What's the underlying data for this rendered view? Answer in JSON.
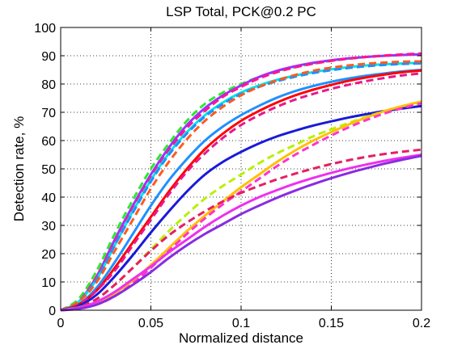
{
  "chart_data": {
    "type": "line",
    "title": "LSP Total, PCK@0.2 PC",
    "xlabel": "Normalized distance",
    "ylabel": "Detection rate, %",
    "xlim": [
      0,
      0.2
    ],
    "ylim": [
      0,
      100
    ],
    "xticks": [
      0,
      0.05,
      0.1,
      0.15,
      0.2
    ],
    "xtick_labels": [
      "0",
      "0.05",
      "0.1",
      "0.15",
      "0.2"
    ],
    "yticks": [
      0,
      10,
      20,
      30,
      40,
      50,
      60,
      70,
      80,
      90,
      100
    ],
    "ytick_labels": [
      "0",
      "10",
      "20",
      "30",
      "40",
      "50",
      "60",
      "70",
      "80",
      "90",
      "100"
    ],
    "grid": "dotted",
    "legend": "none",
    "x": [
      0,
      0.01,
      0.02,
      0.03,
      0.04,
      0.05,
      0.06,
      0.07,
      0.08,
      0.09,
      0.1,
      0.11,
      0.12,
      0.13,
      0.14,
      0.15,
      0.16,
      0.17,
      0.18,
      0.19,
      0.2
    ],
    "series": [
      {
        "color": "#2ee82e",
        "dash": true,
        "values": [
          0,
          4,
          14,
          27,
          39,
          50,
          59,
          67,
          73,
          77,
          80,
          82.5,
          84.5,
          86,
          87.2,
          88.2,
          89,
          89.6,
          90,
          90.3,
          90.5
        ]
      },
      {
        "color": "#9b30ff",
        "dash": false,
        "values": [
          0,
          3,
          12,
          25,
          37,
          48,
          57.5,
          65.5,
          71.5,
          76,
          79.5,
          82.5,
          84.7,
          86.3,
          87.5,
          88.4,
          89.1,
          89.6,
          90,
          90.3,
          90.5
        ]
      },
      {
        "color": "#ff1493",
        "dash": true,
        "values": [
          0,
          3,
          12,
          24,
          36,
          47,
          56.5,
          64.5,
          70.5,
          75.5,
          79,
          82,
          84.2,
          85.9,
          87.2,
          88.2,
          89,
          89.6,
          90.1,
          90.5,
          90.8
        ]
      },
      {
        "color": "#00e5e5",
        "dash": false,
        "values": [
          0,
          3,
          11,
          23,
          35,
          46,
          55.5,
          63,
          69,
          73.5,
          77,
          79.5,
          81.5,
          83,
          84.2,
          85.2,
          86,
          86.6,
          87,
          87.3,
          87.5
        ]
      },
      {
        "color": "#1e8fff",
        "dash": true,
        "values": [
          0,
          3,
          11,
          23,
          34.5,
          45.5,
          55,
          62.5,
          68.5,
          73,
          76.5,
          79,
          81,
          82.6,
          83.9,
          84.9,
          85.7,
          86.3,
          86.8,
          87.1,
          87.3
        ]
      },
      {
        "color": "#ff5a1e",
        "dash": true,
        "values": [
          0,
          3,
          10,
          21,
          32,
          43,
          52.5,
          60.5,
          67,
          72,
          76,
          79,
          81.3,
          83.2,
          84.7,
          85.8,
          86.6,
          87.2,
          87.6,
          87.9,
          88
        ]
      },
      {
        "color": "#1e90ff",
        "dash": false,
        "values": [
          0,
          2,
          8,
          17,
          27,
          37,
          46,
          53.5,
          60,
          65,
          69,
          72.3,
          75.2,
          77.5,
          79.3,
          80.8,
          82,
          83,
          83.8,
          84.5,
          85
        ]
      },
      {
        "color": "#ff0000",
        "dash": false,
        "values": [
          0,
          2,
          7,
          15,
          24,
          33,
          42,
          50,
          57,
          62.5,
          67,
          70.5,
          73.5,
          76,
          78,
          79.7,
          81.2,
          82.4,
          83.4,
          84.2,
          84.8
        ]
      },
      {
        "color": "#e8188c",
        "dash": true,
        "values": [
          0,
          2,
          7,
          14,
          23,
          32,
          41,
          49,
          55.5,
          61,
          65.5,
          69,
          72,
          74.5,
          76.5,
          78.3,
          79.8,
          81.1,
          82.2,
          83.1,
          83.8
        ]
      },
      {
        "color": "#1a1ad8",
        "dash": false,
        "values": [
          0,
          1.5,
          5.5,
          12,
          19.5,
          27.5,
          35,
          42,
          48,
          52.5,
          56,
          59,
          61.5,
          63.5,
          65.3,
          66.8,
          68.2,
          69.4,
          70.5,
          71.4,
          72.2
        ]
      },
      {
        "color": "#b8f000",
        "dash": true,
        "values": [
          0,
          1,
          4,
          9,
          15,
          21.5,
          28,
          34,
          39.5,
          44,
          48,
          52,
          55.5,
          58.5,
          61.5,
          64,
          66.3,
          68.5,
          70.5,
          72.2,
          73.5
        ]
      },
      {
        "color": "#ffc000",
        "dash": false,
        "values": [
          0,
          1,
          2.5,
          6,
          10.5,
          16,
          22,
          28,
          33.5,
          38.5,
          43.5,
          48,
          52.5,
          56.5,
          60,
          63,
          65.8,
          68.3,
          70.5,
          72.3,
          73.8
        ]
      },
      {
        "color": "#ff33cc",
        "dash": true,
        "values": [
          0,
          0.5,
          2,
          5,
          9.5,
          15,
          21,
          27,
          32.5,
          37.5,
          42,
          46.5,
          51,
          55,
          58.5,
          61.8,
          64.8,
          67.4,
          69.7,
          71.6,
          73.2
        ]
      },
      {
        "color": "#e61e64",
        "dash": true,
        "values": [
          0,
          1,
          4,
          9,
          15,
          21,
          26.5,
          31,
          35,
          38.5,
          41.5,
          44,
          46.3,
          48.3,
          50.1,
          51.7,
          53.1,
          54.3,
          55.3,
          56.1,
          56.8
        ]
      },
      {
        "color": "#ee30ee",
        "dash": false,
        "values": [
          0,
          0.8,
          3,
          6.5,
          11,
          15.5,
          20.5,
          25,
          29.5,
          33.5,
          37,
          40,
          42.5,
          44.8,
          46.8,
          48.6,
          50.2,
          51.6,
          52.9,
          54,
          55
        ]
      },
      {
        "color": "#8a2be2",
        "dash": false,
        "values": [
          0,
          0.5,
          2,
          5,
          9,
          13.5,
          18.5,
          23,
          27,
          30.5,
          34,
          37,
          39.8,
          42.3,
          44.6,
          46.7,
          48.6,
          50.3,
          51.9,
          53.3,
          54.6
        ]
      }
    ]
  }
}
